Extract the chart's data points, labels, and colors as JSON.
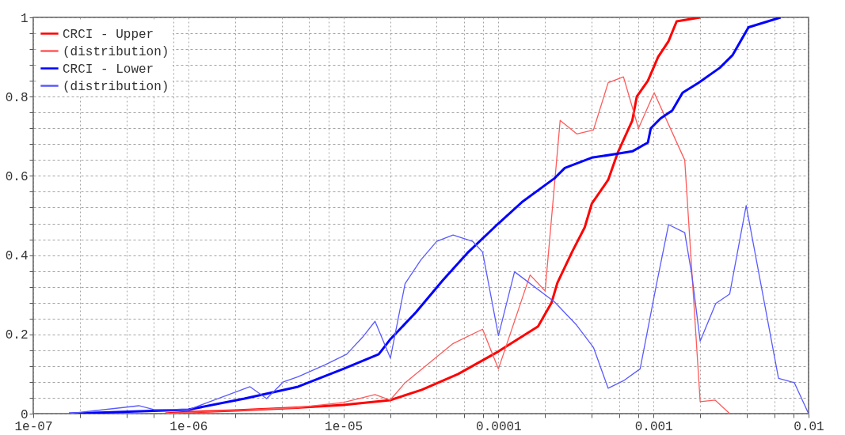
{
  "chart_data": {
    "type": "line",
    "log": "x",
    "grid": true,
    "legend": "top left",
    "xlim": [
      1e-07,
      0.01
    ],
    "xticks": [
      {
        "value": 1e-07,
        "label": "1e-07"
      },
      {
        "value": 2e-07,
        "label": null
      },
      {
        "value": 4e-07,
        "label": null
      },
      {
        "value": 6e-07,
        "label": null
      },
      {
        "value": 8e-07,
        "label": null
      },
      {
        "value": 1e-06,
        "label": "1e-06"
      },
      {
        "value": 2e-06,
        "label": null
      },
      {
        "value": 4e-06,
        "label": null
      },
      {
        "value": 6e-06,
        "label": null
      },
      {
        "value": 8e-06,
        "label": null
      },
      {
        "value": 1e-05,
        "label": "1e-05"
      },
      {
        "value": 2e-05,
        "label": null
      },
      {
        "value": 4e-05,
        "label": null
      },
      {
        "value": 6e-05,
        "label": null
      },
      {
        "value": 8e-05,
        "label": null
      },
      0.0001,
      {
        "value": 0.0002,
        "label": null
      },
      {
        "value": 0.0004,
        "label": null
      },
      {
        "value": 0.0006,
        "label": null
      },
      {
        "value": 0.0008,
        "label": null
      },
      0.001,
      {
        "value": 0.002,
        "label": null
      },
      {
        "value": 0.004,
        "label": null
      },
      {
        "value": 0.006,
        "label": null
      },
      {
        "value": 0.008,
        "label": null
      },
      0.01
    ],
    "ylim": [
      0,
      1
    ],
    "yticks": [
      0,
      {
        "value": 0.04,
        "label": null
      },
      {
        "value": 0.08,
        "label": null
      },
      {
        "value": 0.12,
        "label": null
      },
      {
        "value": 0.16,
        "label": null
      },
      0.2,
      {
        "value": 0.24,
        "label": null
      },
      {
        "value": 0.28,
        "label": null
      },
      {
        "value": 0.32,
        "label": null
      },
      {
        "value": 0.36,
        "label": null
      },
      0.4,
      {
        "value": 0.44,
        "label": null
      },
      {
        "value": 0.48,
        "label": null
      },
      {
        "value": 0.52,
        "label": null
      },
      {
        "value": 0.56,
        "label": null
      },
      0.6,
      {
        "value": 0.64,
        "label": null
      },
      {
        "value": 0.68,
        "label": null
      },
      {
        "value": 0.72,
        "label": null
      },
      {
        "value": 0.76,
        "label": null
      },
      0.8,
      {
        "value": 0.84,
        "label": null
      },
      {
        "value": 0.88,
        "label": null
      },
      {
        "value": 0.92,
        "label": null
      },
      {
        "value": 0.96,
        "label": null
      },
      1
    ],
    "series": [
      {
        "name": "CRCI - Upper",
        "color": "#ff0000",
        "x": [
          7.1e-07,
          1e-06,
          2e-06,
          5e-06,
          1e-05,
          2e-05,
          3.2e-05,
          5.5e-05,
          0.0001,
          0.00018,
          0.00022,
          0.00024,
          0.0003,
          0.00036,
          0.0004,
          0.00051,
          0.00059,
          0.00073,
          0.00078,
          0.00092,
          0.00107,
          0.00125,
          0.00141,
          0.002
        ],
        "values": [
          0,
          0.004,
          0.008,
          0.015,
          0.022,
          0.034,
          0.06,
          0.1,
          0.157,
          0.22,
          0.28,
          0.33,
          0.41,
          0.47,
          0.53,
          0.59,
          0.66,
          0.74,
          0.8,
          0.84,
          0.9,
          0.94,
          0.99,
          1.0
        ]
      },
      {
        "name": "(distribution)",
        "color": "#ff5a5a",
        "x": [
          7.1e-07,
          1e-06,
          5e-06,
          1e-05,
          1.6e-05,
          2e-05,
          2.5e-05,
          5.1e-05,
          7.9e-05,
          0.0001,
          0.00016,
          0.0002,
          0.00025,
          0.00032,
          0.00041,
          0.00051,
          0.00064,
          0.0008,
          0.00101,
          0.00159,
          0.002,
          0.0025,
          0.0031
        ],
        "values": [
          0,
          0.003,
          0.015,
          0.028,
          0.048,
          0.034,
          0.078,
          0.177,
          0.213,
          0.113,
          0.35,
          0.31,
          0.74,
          0.706,
          0.716,
          0.835,
          0.85,
          0.72,
          0.81,
          0.64,
          0.03,
          0.034,
          0
        ]
      },
      {
        "name": "CRCI - Lower",
        "color": "#0000ff",
        "x": [
          1.7e-07,
          1e-06,
          2.3e-06,
          5.1e-06,
          1e-05,
          1.69e-05,
          2e-05,
          2.94e-05,
          4.36e-05,
          6.4e-05,
          0.0001,
          0.000143,
          0.00023,
          0.000268,
          0.0004,
          0.00059,
          0.00073,
          0.00092,
          0.00096,
          0.00111,
          0.00132,
          0.00154,
          0.00195,
          0.00268,
          0.00324,
          0.0041,
          0.0059,
          0.0066
        ],
        "values": [
          0,
          0.01,
          0.038,
          0.068,
          0.113,
          0.15,
          0.187,
          0.256,
          0.336,
          0.408,
          0.48,
          0.535,
          0.594,
          0.62,
          0.646,
          0.656,
          0.662,
          0.684,
          0.72,
          0.745,
          0.765,
          0.81,
          0.835,
          0.873,
          0.905,
          0.975,
          0.994,
          1
        ]
      },
      {
        "name": "(distribution)",
        "color": "#5a5aff",
        "x": [
          1.7e-07,
          4.8e-07,
          6e-07,
          1e-06,
          2.5e-06,
          3.2e-06,
          4.1e-06,
          5.1e-06,
          7.6e-06,
          1.05e-05,
          1.33e-05,
          1.6e-05,
          2.01e-05,
          2.5e-05,
          3.16e-05,
          4e-05,
          5.1e-05,
          6.8e-05,
          7.9e-05,
          0.0001,
          0.000127,
          0.00023,
          0.00032,
          0.00041,
          0.00051,
          0.00064,
          0.00082,
          0.00104,
          0.00125,
          0.00159,
          0.00177,
          0.002,
          0.00252,
          0.0031,
          0.00396,
          0.0064,
          0.0081,
          0.01
        ],
        "values": [
          0,
          0.02,
          0.01,
          0.01,
          0.068,
          0.038,
          0.08,
          0.093,
          0.123,
          0.15,
          0.193,
          0.233,
          0.14,
          0.328,
          0.388,
          0.435,
          0.451,
          0.435,
          0.408,
          0.197,
          0.358,
          0.282,
          0.223,
          0.167,
          0.064,
          0.083,
          0.113,
          0.322,
          0.477,
          0.457,
          0.348,
          0.183,
          0.278,
          0.302,
          0.525,
          0.089,
          0.078,
          0
        ]
      }
    ]
  }
}
